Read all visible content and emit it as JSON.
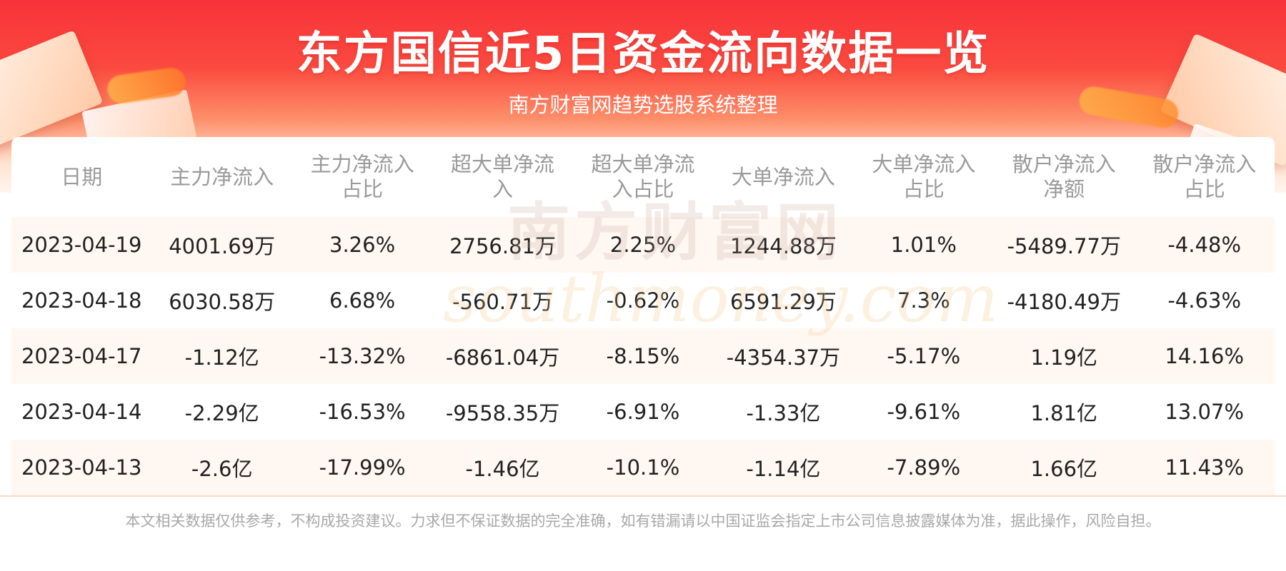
{
  "header": {
    "title": "东方国信近5日资金流向数据一览",
    "subtitle": "南方财富网趋势选股系统整理"
  },
  "watermark": {
    "cn": "南方财富网",
    "en": "southmoney.com"
  },
  "table": {
    "columns": [
      [
        "日期"
      ],
      [
        "主力净流入"
      ],
      [
        "主力净流入",
        "占比"
      ],
      [
        "超大单净流",
        "入"
      ],
      [
        "超大单净流",
        "入占比"
      ],
      [
        "大单净流入"
      ],
      [
        "大单净流入",
        "占比"
      ],
      [
        "散户净流入",
        "净额"
      ],
      [
        "散户净流入",
        "占比"
      ]
    ],
    "rows": [
      [
        "2023-04-19",
        "4001.69万",
        "3.26%",
        "2756.81万",
        "2.25%",
        "1244.88万",
        "1.01%",
        "-5489.77万",
        "-4.48%"
      ],
      [
        "2023-04-18",
        "6030.58万",
        "6.68%",
        "-560.71万",
        "-0.62%",
        "6591.29万",
        "7.3%",
        "-4180.49万",
        "-4.63%"
      ],
      [
        "2023-04-17",
        "-1.12亿",
        "-13.32%",
        "-6861.04万",
        "-8.15%",
        "-4354.37万",
        "-5.17%",
        "1.19亿",
        "14.16%"
      ],
      [
        "2023-04-14",
        "-2.29亿",
        "-16.53%",
        "-9558.35万",
        "-6.91%",
        "-1.33亿",
        "-9.61%",
        "1.81亿",
        "13.07%"
      ],
      [
        "2023-04-13",
        "-2.6亿",
        "-17.99%",
        "-1.46亿",
        "-10.1%",
        "-1.14亿",
        "-7.89%",
        "1.66亿",
        "11.43%"
      ]
    ]
  },
  "footer": {
    "disclaimer": "本文相关数据仅供参考，不构成投资建议。力求但不保证数据的完全准确，如有错漏请以中国证监会指定上市公司信息披露媒体为准，据此操作，风险自担。"
  }
}
